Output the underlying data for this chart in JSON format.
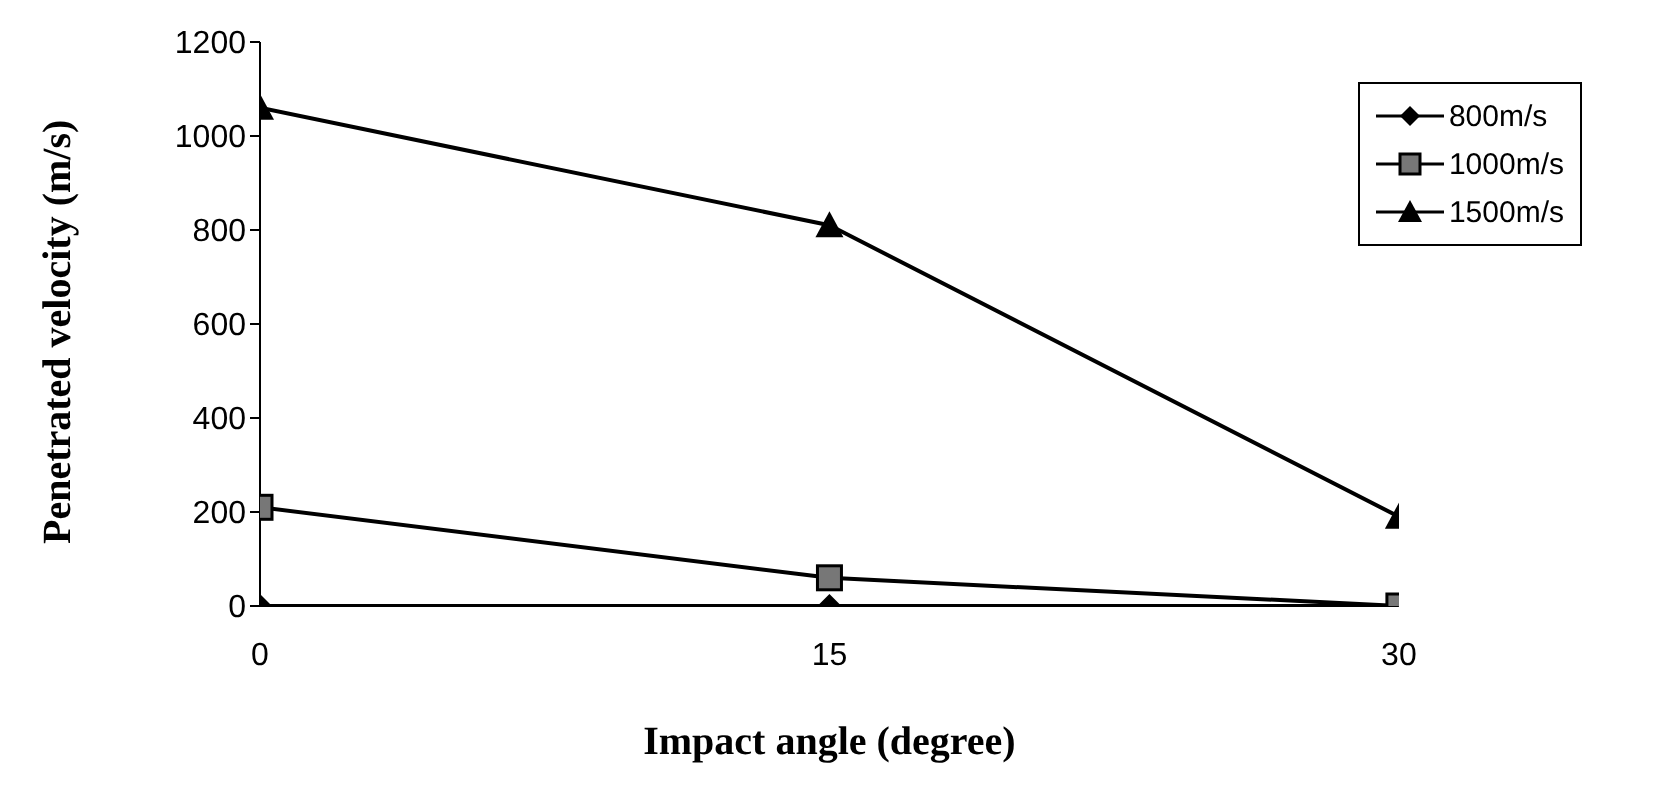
{
  "chart_data": {
    "type": "line",
    "xlabel": "Impact angle (degree)",
    "ylabel": "Penetrated velocity (m/s)",
    "x": [
      0,
      15,
      30
    ],
    "series": [
      {
        "name": "800m/s",
        "color": "#000000",
        "marker": "diamond",
        "values": [
          0,
          0,
          0
        ]
      },
      {
        "name": "1000m/s",
        "color": "#000000",
        "marker": "square",
        "values": [
          210,
          60,
          0
        ]
      },
      {
        "name": "1500m/s",
        "color": "#000000",
        "marker": "triangle",
        "values": [
          1060,
          810,
          190
        ]
      }
    ],
    "xlim": [
      0,
      30
    ],
    "xticks": [
      0,
      15,
      30
    ],
    "ylim": [
      0,
      1200
    ],
    "yticks": [
      0,
      200,
      400,
      600,
      800,
      1000,
      1200
    ],
    "grid": false,
    "legend": "top right"
  }
}
